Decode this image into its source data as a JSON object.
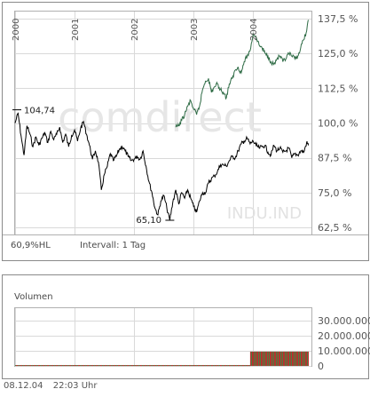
{
  "watermark": {
    "brand": "comdirect",
    "symbol": "INDU.IND"
  },
  "chart_data": [
    {
      "type": "line",
      "x_ticks": [
        "2000",
        "2001",
        "2002",
        "2003",
        "2004"
      ],
      "y_ticks": [
        "137,5 %",
        "125,0 %",
        "112,5 %",
        "100,0 %",
        "87,5 %",
        "75,0 %",
        "62,5 %"
      ],
      "ylim": [
        60.0,
        140.0
      ],
      "grid": true,
      "series": [
        {
          "color": "#000000",
          "x": [
            2000.0,
            2000.05,
            2000.1,
            2000.15,
            2000.2,
            2000.25,
            2000.3,
            2000.35,
            2000.4,
            2000.45,
            2000.5,
            2000.55,
            2000.6,
            2000.65,
            2000.7,
            2000.75,
            2000.8,
            2000.85,
            2000.9,
            2000.95,
            2001.0,
            2001.05,
            2001.1,
            2001.15,
            2001.2,
            2001.25,
            2001.3,
            2001.35,
            2001.4,
            2001.45,
            2001.5,
            2001.55,
            2001.6,
            2001.65,
            2001.7,
            2001.75,
            2001.8,
            2001.85,
            2001.9,
            2001.95,
            2002.0,
            2002.05,
            2002.1,
            2002.15,
            2002.2,
            2002.25,
            2002.3,
            2002.35,
            2002.4,
            2002.45,
            2002.5,
            2002.55,
            2002.6,
            2002.65,
            2002.7,
            2002.75,
            2002.8,
            2002.85,
            2002.9,
            2002.95,
            2003.0,
            2003.05,
            2003.1,
            2003.15,
            2003.2,
            2003.25,
            2003.3,
            2003.35,
            2003.4,
            2003.45,
            2003.5,
            2003.55,
            2003.6,
            2003.65,
            2003.7,
            2003.75,
            2003.8,
            2003.85,
            2003.9,
            2003.95,
            2004.0,
            2004.05,
            2004.1,
            2004.15,
            2004.2,
            2004.25,
            2004.3,
            2004.35,
            2004.4,
            2004.45,
            2004.5,
            2004.55,
            2004.6,
            2004.65,
            2004.7,
            2004.75,
            2004.8,
            2004.85,
            2004.9,
            2004.93
          ],
          "y": [
            100.0,
            103.5,
            95.5,
            88.5,
            99.0,
            96.0,
            91.5,
            95.0,
            92.0,
            94.5,
            96.5,
            93.0,
            97.0,
            94.0,
            96.0,
            98.5,
            93.0,
            96.0,
            91.5,
            95.5,
            97.5,
            93.5,
            98.0,
            100.5,
            96.0,
            92.0,
            87.0,
            90.0,
            86.0,
            76.0,
            81.5,
            84.5,
            89.0,
            86.5,
            88.0,
            90.5,
            91.5,
            90.0,
            88.0,
            86.5,
            87.0,
            88.0,
            87.0,
            90.0,
            84.5,
            79.0,
            75.0,
            69.5,
            67.0,
            72.0,
            74.0,
            69.5,
            65.1,
            71.5,
            76.0,
            71.0,
            75.0,
            73.0,
            76.0,
            73.0,
            70.0,
            68.0,
            72.0,
            75.0,
            75.0,
            78.5,
            80.0,
            81.0,
            82.5,
            85.0,
            85.0,
            84.5,
            86.5,
            88.0,
            87.5,
            90.0,
            92.5,
            93.5,
            94.5,
            92.5,
            93.5,
            92.0,
            91.0,
            91.5,
            92.0,
            89.5,
            88.5,
            92.0,
            90.0,
            91.0,
            89.5,
            90.0,
            91.0,
            87.5,
            89.0,
            88.5,
            90.0,
            89.5,
            93.0,
            92.0
          ]
        },
        {
          "color": "#2e6b45",
          "x": [
            2002.7,
            2002.75,
            2002.8,
            2002.85,
            2002.9,
            2002.95,
            2003.0,
            2003.05,
            2003.1,
            2003.15,
            2003.2,
            2003.25,
            2003.3,
            2003.35,
            2003.4,
            2003.45,
            2003.5,
            2003.55,
            2003.6,
            2003.65,
            2003.7,
            2003.75,
            2003.8,
            2003.85,
            2003.9,
            2003.95,
            2004.0,
            2004.05,
            2004.1,
            2004.15,
            2004.2,
            2004.25,
            2004.3,
            2004.35,
            2004.4,
            2004.45,
            2004.5,
            2004.55,
            2004.6,
            2004.65,
            2004.7,
            2004.75,
            2004.8,
            2004.85,
            2004.9,
            2004.93
          ],
          "y": [
            98.5,
            99.0,
            101.0,
            103.0,
            106.0,
            108.0,
            105.0,
            103.0,
            106.0,
            112.0,
            115.0,
            116.0,
            111.0,
            113.0,
            114.0,
            112.0,
            111.0,
            109.0,
            114.0,
            116.0,
            119.0,
            120.0,
            118.0,
            122.0,
            124.0,
            126.0,
            132.0,
            131.0,
            128.0,
            127.0,
            125.0,
            124.0,
            122.0,
            121.0,
            123.0,
            124.0,
            122.0,
            123.0,
            125.0,
            124.0,
            123.0,
            124.0,
            127.0,
            130.0,
            133.0,
            137.0
          ]
        }
      ],
      "annotations": [
        {
          "text": "104,74",
          "x": 2000.03,
          "y": 104.74
        },
        {
          "text": "65,10",
          "x": 2002.6,
          "y": 65.1
        }
      ],
      "info_text": "60,9%HL",
      "interval_text": "Intervall: 1 Tag"
    },
    {
      "type": "bar",
      "title": "Volumen",
      "y_ticks": [
        "30.000.000",
        "20.000.000",
        "10.000.000",
        "0"
      ],
      "ylim": [
        0,
        30000000
      ],
      "grid": true,
      "positive_color": "#2e7d32",
      "negative_color": "#b71c1c",
      "segments": [
        {
          "x_start": 2000.0,
          "x_end": 2003.95,
          "approx_volume": 500000
        },
        {
          "x_start": 2003.95,
          "x_end": 2004.93,
          "approx_volume": 9500000
        }
      ]
    }
  ],
  "footer": {
    "date": "08.12.04",
    "time": "22:03 Uhr"
  }
}
